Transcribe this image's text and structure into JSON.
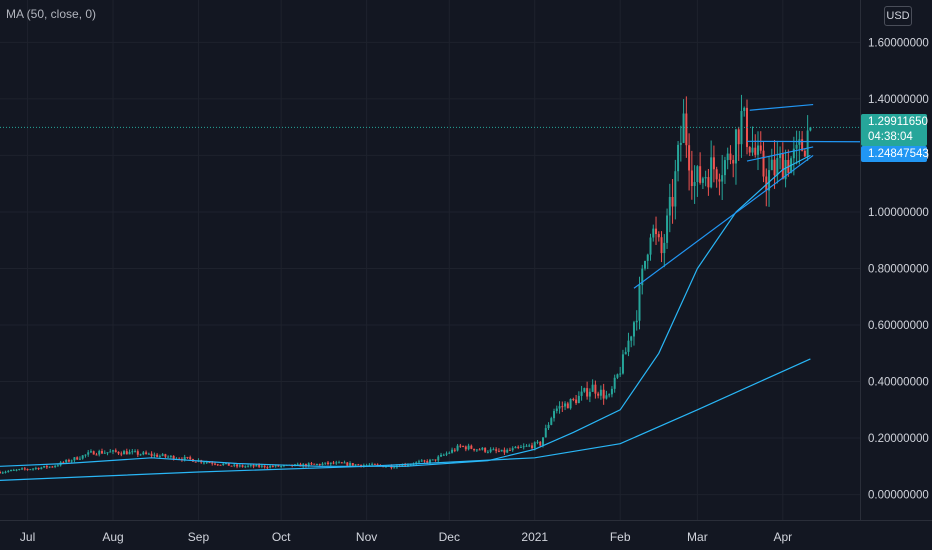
{
  "indicator_label": "MA (50, close, 0)",
  "currency": "USD",
  "current_price": "1.29911650",
  "countdown": "04:38:04",
  "level_price": "1.24847543",
  "colors": {
    "background": "#131722",
    "up": "#26a69a",
    "down": "#ef5350",
    "ma": "#29b6f6",
    "trendline": "#2196f3"
  },
  "chart_data": {
    "type": "candlestick",
    "y_ticks": [
      "1.60000000",
      "1.40000000",
      "1.20000000",
      "1.00000000",
      "0.80000000",
      "0.60000000",
      "0.40000000",
      "0.20000000",
      "0.00000000"
    ],
    "y_tick_values": [
      1.6,
      1.4,
      1.2,
      1.0,
      0.8,
      0.6,
      0.4,
      0.2,
      0.0
    ],
    "x_ticks": [
      "Jul",
      "Aug",
      "Sep",
      "Oct",
      "Nov",
      "Dec",
      "2021",
      "Feb",
      "Mar",
      "Apr"
    ],
    "x_tick_dates": [
      "2020-07-01",
      "2020-08-01",
      "2020-09-01",
      "2020-10-01",
      "2020-11-01",
      "2020-12-01",
      "2021-01-01",
      "2021-02-01",
      "2021-03-01",
      "2021-04-01"
    ],
    "x_range": [
      "2020-06-21",
      "2021-04-29"
    ],
    "y_range": [
      -0.09,
      1.75
    ],
    "close_anchors": [
      [
        "2020-06-21",
        0.08
      ],
      [
        "2020-07-10",
        0.1
      ],
      [
        "2020-07-25",
        0.15
      ],
      [
        "2020-08-05",
        0.15
      ],
      [
        "2020-08-25",
        0.13
      ],
      [
        "2020-09-15",
        0.1
      ],
      [
        "2020-10-01",
        0.1
      ],
      [
        "2020-10-20",
        0.11
      ],
      [
        "2020-11-10",
        0.1
      ],
      [
        "2020-11-25",
        0.12
      ],
      [
        "2020-12-05",
        0.17
      ],
      [
        "2020-12-20",
        0.15
      ],
      [
        "2021-01-03",
        0.18
      ],
      [
        "2021-01-08",
        0.3
      ],
      [
        "2021-01-15",
        0.33
      ],
      [
        "2021-01-22",
        0.38
      ],
      [
        "2021-01-28",
        0.34
      ],
      [
        "2021-02-02",
        0.47
      ],
      [
        "2021-02-07",
        0.65
      ],
      [
        "2021-02-12",
        0.95
      ],
      [
        "2021-02-16",
        0.85
      ],
      [
        "2021-02-20",
        1.05
      ],
      [
        "2021-02-24",
        1.32
      ],
      [
        "2021-02-28",
        1.1
      ],
      [
        "2021-03-05",
        1.15
      ],
      [
        "2021-03-12",
        1.18
      ],
      [
        "2021-03-17",
        1.33
      ],
      [
        "2021-03-22",
        1.2
      ],
      [
        "2021-03-26",
        1.12
      ],
      [
        "2021-04-01",
        1.18
      ],
      [
        "2021-04-06",
        1.19
      ],
      [
        "2021-04-11",
        1.2991165
      ]
    ],
    "ma_short": [
      [
        "2020-06-21",
        0.1
      ],
      [
        "2020-07-15",
        0.11
      ],
      [
        "2020-08-15",
        0.13
      ],
      [
        "2020-09-15",
        0.11
      ],
      [
        "2020-10-15",
        0.1
      ],
      [
        "2020-11-15",
        0.1
      ],
      [
        "2020-12-15",
        0.12
      ],
      [
        "2021-01-01",
        0.16
      ],
      [
        "2021-01-15",
        0.22
      ],
      [
        "2021-02-01",
        0.3
      ],
      [
        "2021-02-15",
        0.5
      ],
      [
        "2021-03-01",
        0.8
      ],
      [
        "2021-03-15",
        1.0
      ],
      [
        "2021-04-01",
        1.15
      ],
      [
        "2021-04-11",
        1.2
      ]
    ],
    "ma_long": [
      [
        "2020-06-21",
        0.05
      ],
      [
        "2020-09-01",
        0.08
      ],
      [
        "2020-11-01",
        0.1
      ],
      [
        "2021-01-01",
        0.13
      ],
      [
        "2021-02-01",
        0.18
      ],
      [
        "2021-03-01",
        0.3
      ],
      [
        "2021-04-11",
        0.48
      ]
    ],
    "trendlines": [
      [
        [
          "2021-02-06",
          0.73
        ],
        [
          "2021-04-12",
          1.2
        ]
      ],
      [
        [
          "2021-03-20",
          1.36
        ],
        [
          "2021-04-12",
          1.38
        ]
      ],
      [
        [
          "2021-03-19",
          1.18
        ],
        [
          "2021-04-12",
          1.23
        ]
      ],
      [
        [
          "2021-03-19",
          1.25
        ],
        [
          "2021-04-29",
          1.24847543
        ]
      ]
    ],
    "current_price": 1.2991165,
    "level_price": 1.24847543
  }
}
